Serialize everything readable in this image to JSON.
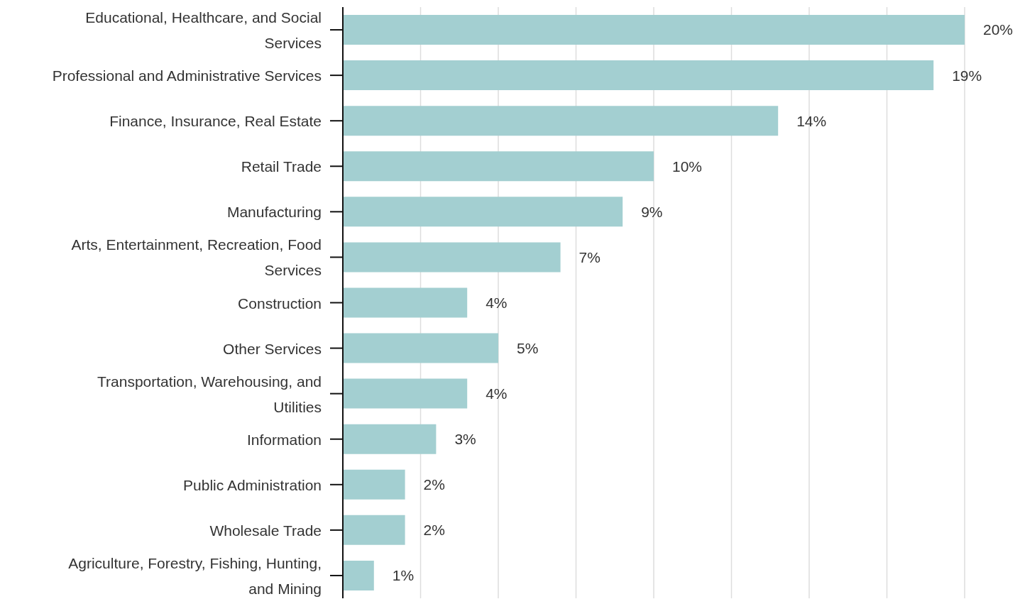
{
  "chart_data": {
    "type": "bar",
    "orientation": "horizontal",
    "categories": [
      "Educational, Healthcare, and Social Services",
      "Professional and Administrative Services",
      "Finance, Insurance, Real Estate",
      "Retail Trade",
      "Manufacturing",
      "Arts, Entertainment, Recreation, Food Services",
      "Construction",
      "Other Services",
      "Transportation, Warehousing, and Utilities",
      "Information",
      "Public Administration",
      "Wholesale Trade",
      "Agriculture, Forestry, Fishing, Hunting, and Mining"
    ],
    "values": [
      20,
      19,
      14,
      10,
      9,
      7,
      4,
      5,
      4,
      3,
      2,
      2,
      1
    ],
    "value_labels": [
      "20%",
      "19%",
      "14%",
      "10%",
      "9%",
      "7%",
      "4%",
      "5%",
      "4%",
      "3%",
      "2%",
      "2%",
      "1%"
    ],
    "color": "#a3cfd1",
    "xlim": [
      0,
      20
    ],
    "xticks": [
      {
        "value": 0,
        "label": null
      },
      {
        "value": 2.5,
        "label": null
      },
      {
        "value": 5,
        "label": null
      },
      {
        "value": 7.5,
        "label": null
      },
      {
        "value": 10,
        "label": null
      },
      {
        "value": 12.5,
        "label": null
      },
      {
        "value": 15,
        "label": null
      },
      {
        "value": 17.5,
        "label": null
      },
      {
        "value": 20,
        "label": null
      }
    ],
    "grid": "x",
    "tick_labels": "y",
    "legend": false
  }
}
